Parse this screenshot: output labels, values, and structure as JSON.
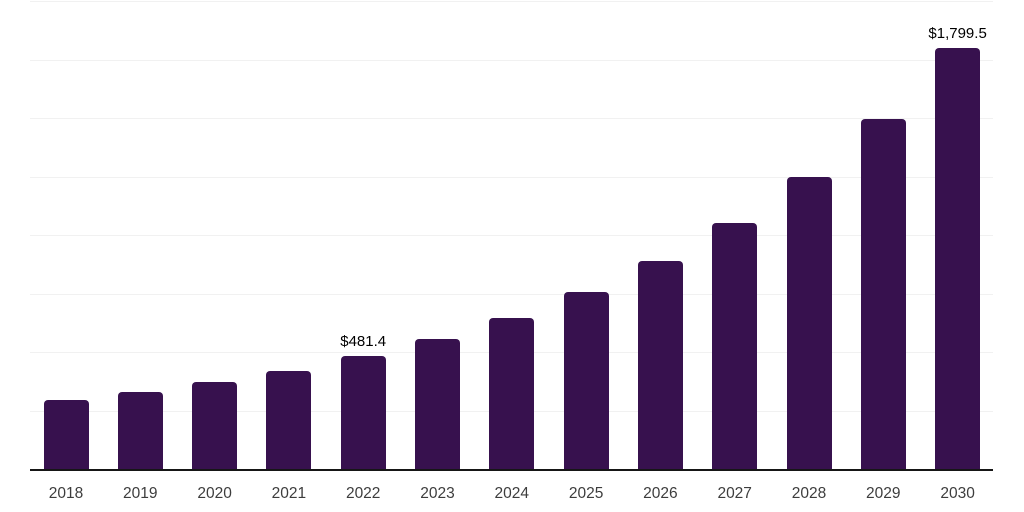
{
  "chart_data": {
    "type": "bar",
    "title": "",
    "xlabel": "",
    "ylabel": "",
    "categories": [
      "2018",
      "2019",
      "2020",
      "2021",
      "2022",
      "2023",
      "2024",
      "2025",
      "2026",
      "2027",
      "2028",
      "2029",
      "2030"
    ],
    "values": [
      295,
      331,
      372,
      420,
      481.4,
      557,
      645,
      758,
      888,
      1051,
      1250,
      1497,
      1799.5
    ],
    "bar_labels": [
      null,
      null,
      null,
      null,
      "$481.4",
      null,
      null,
      null,
      null,
      null,
      null,
      null,
      "$1,799.5"
    ],
    "ylim": [
      0,
      2000
    ],
    "gridline_interval": 250,
    "grid": "horizontal",
    "legend_position": "none",
    "y_axis_labels_visible": false,
    "colors": {
      "bar": "#37114e",
      "axis_line": "#161616",
      "gridline": "#f1f1f1",
      "tick_label": "#3d3d3d",
      "data_label": "#000000",
      "background": "#ffffff"
    }
  }
}
